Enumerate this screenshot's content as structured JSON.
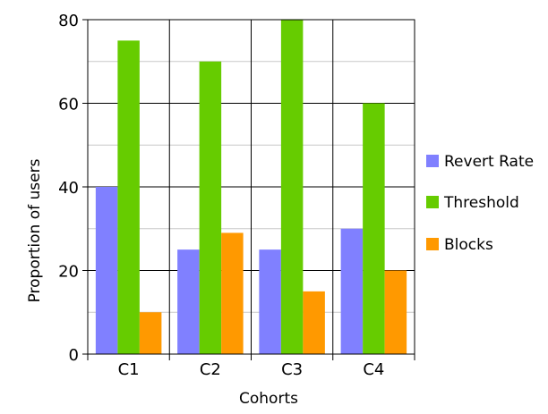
{
  "chart_data": {
    "type": "bar",
    "title": "",
    "xlabel": "Cohorts",
    "ylabel": "Proportion of users",
    "categories": [
      "C1",
      "C2",
      "C3",
      "C4"
    ],
    "series": [
      {
        "name": "Revert Rate",
        "color": "#8080ff",
        "values": [
          40,
          25,
          25,
          30
        ]
      },
      {
        "name": "Threshold",
        "color": "#66cc00",
        "values": [
          75,
          70,
          80,
          60
        ]
      },
      {
        "name": "Blocks",
        "color": "#ff9900",
        "values": [
          10,
          29,
          15,
          20
        ]
      }
    ],
    "ylim": [
      0,
      80
    ],
    "yticks": [
      0,
      20,
      40,
      60,
      80
    ],
    "minor_gridlines": [
      10,
      30,
      50,
      70
    ],
    "grid": true,
    "legend_position": "right"
  }
}
